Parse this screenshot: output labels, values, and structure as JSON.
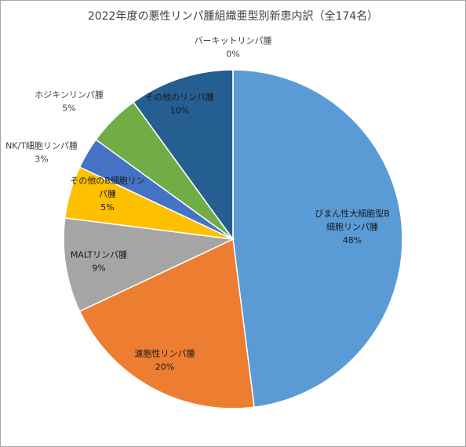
{
  "chart_data": {
    "type": "pie",
    "title": "2022年度の悪性リンパ腫組織亜型別新患内訳（全174名）",
    "start_angle_deg": 0,
    "direction": "clockwise",
    "legend": "none",
    "slices": [
      {
        "name": "びまん性大細胞型B細胞リンパ腫",
        "label_lines": [
          "びまん性大細胞型B",
          "細胞リンパ腫"
        ],
        "value": 48,
        "value_label": "48%",
        "color": "#5b9bd5",
        "label_color": "#1a1a1a",
        "label_position": "inside"
      },
      {
        "name": "濾胞性リンパ腫",
        "label_lines": [
          "濾胞性リンパ腫"
        ],
        "value": 20,
        "value_label": "20%",
        "color": "#ed7d31",
        "label_color": "#1a1a1a",
        "label_position": "inside"
      },
      {
        "name": "MALTリンパ腫",
        "label_lines": [
          "MALTリンパ腫"
        ],
        "value": 9,
        "value_label": "9%",
        "color": "#a5a5a5",
        "label_color": "#1a1a1a",
        "label_position": "inside"
      },
      {
        "name": "その他のB細胞リンパ腫",
        "label_lines": [
          "その他のB細胞リン",
          "パ腫"
        ],
        "value": 5,
        "value_label": "5%",
        "color": "#ffc000",
        "label_color": "#1a1a1a",
        "label_position": "inside"
      },
      {
        "name": "NK/T細胞リンパ腫",
        "label_lines": [
          "NK/T細胞リンパ腫"
        ],
        "value": 3,
        "value_label": "3%",
        "color": "#4472c4",
        "label_color": "#404040",
        "label_position": "outside"
      },
      {
        "name": "ホジキンリンパ腫",
        "label_lines": [
          "ホジキンリンパ腫"
        ],
        "value": 5,
        "value_label": "5%",
        "color": "#70ad47",
        "label_color": "#404040",
        "label_position": "outside"
      },
      {
        "name": "その他のリンパ腫",
        "label_lines": [
          "その他のリンパ腫"
        ],
        "value": 10,
        "value_label": "10%",
        "color": "#255e91",
        "label_color": "#1a1a1a",
        "label_position": "inside"
      },
      {
        "name": "バーキットリンパ腫",
        "label_lines": [
          "バーキットリンパ腫"
        ],
        "value": 0,
        "value_label": "0%",
        "color": "#264478",
        "label_color": "#404040",
        "label_position": "outside"
      }
    ]
  }
}
